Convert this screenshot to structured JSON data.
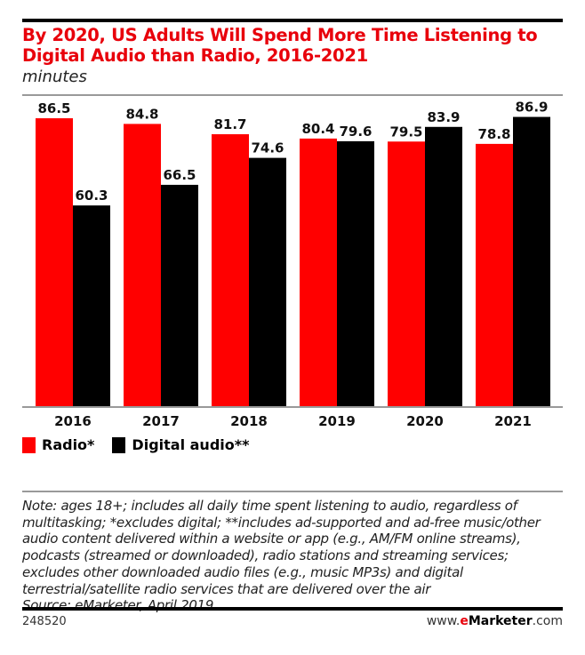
{
  "chart_data": {
    "type": "bar",
    "title": "By 2020, US Adults Will Spend More Time Listening to Digital Audio than Radio, 2016-2021",
    "subtitle": "minutes",
    "categories": [
      "2016",
      "2017",
      "2018",
      "2019",
      "2020",
      "2021"
    ],
    "series": [
      {
        "name": "Radio*",
        "color": "#ff0000",
        "values": [
          86.5,
          84.8,
          81.7,
          80.4,
          79.5,
          78.8
        ]
      },
      {
        "name": "Digital audio**",
        "color": "#000000",
        "values": [
          60.3,
          66.5,
          74.6,
          79.6,
          83.9,
          86.9
        ]
      }
    ],
    "ylim": [
      0,
      86.9
    ],
    "grid": false,
    "legend_placement": "bottom-left",
    "data_labels": true
  },
  "note": "Note: ages 18+; includes all daily time spent listening to audio, regardless of multitasking; *excludes digital; **includes ad-supported and ad-free music/other audio content delivered within a website or app (e.g., AM/FM online streams), podcasts (streamed or downloaded), radio stations and streaming services; excludes other downloaded audio files (e.g., music MP3s) and digital terrestrial/satellite radio services that are delivered over the air",
  "source": "Source: eMarketer, April 2019",
  "chart_id": "248520",
  "brand": {
    "prefix": "www.",
    "e": "e",
    "name": "Marketer",
    "suffix": ".com"
  }
}
